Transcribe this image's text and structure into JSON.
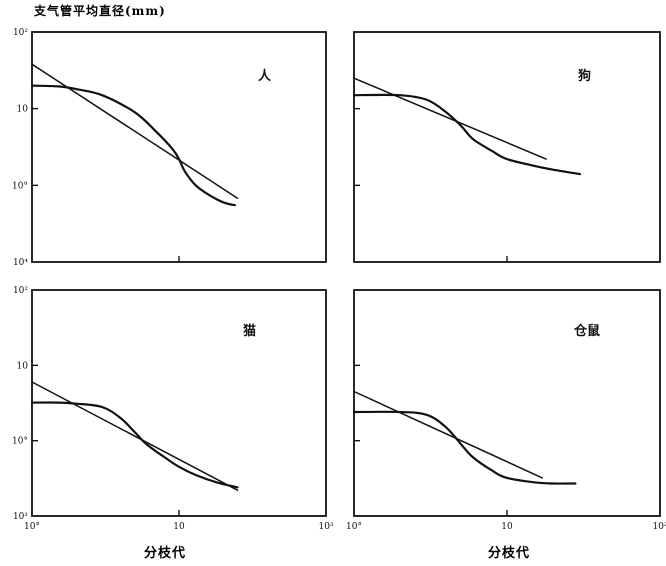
{
  "figure": {
    "ylabel": "支气管平均直径(mm)",
    "xlabel": "分枝代",
    "colors": {
      "ink": "#111111",
      "background": "#ffffff"
    }
  },
  "chart_data": [
    {
      "type": "line",
      "panel_label": "人",
      "xscale": "log",
      "yscale": "log",
      "xlim": [
        1,
        100
      ],
      "ylim": [
        0.1,
        100
      ],
      "xticks": [],
      "yticks": [
        "10²",
        "10",
        "10°",
        "10⁴"
      ],
      "series": [
        {
          "values": [
            [
              1,
              20
            ],
            [
              1.5,
              19.5
            ],
            [
              2,
              18
            ],
            [
              3,
              15
            ],
            [
              5,
              9
            ],
            [
              7,
              5
            ],
            [
              9,
              3
            ],
            [
              10,
              2.2
            ],
            [
              11,
              1.5
            ],
            [
              13,
              1
            ],
            [
              16,
              0.75
            ],
            [
              20,
              0.6
            ],
            [
              24,
              0.55
            ]
          ]
        },
        {
          "values": [
            [
              1,
              38
            ],
            [
              25,
              0.68
            ]
          ]
        }
      ]
    },
    {
      "type": "line",
      "panel_label": "狗",
      "xscale": "log",
      "yscale": "log",
      "xlim": [
        1,
        100
      ],
      "ylim": [
        0.1,
        100
      ],
      "xticks": [],
      "yticks": [],
      "series": [
        {
          "values": [
            [
              1,
              15
            ],
            [
              2,
              15
            ],
            [
              3,
              13
            ],
            [
              4,
              9
            ],
            [
              5,
              6
            ],
            [
              6,
              4
            ],
            [
              8,
              2.8
            ],
            [
              10,
              2.2
            ],
            [
              15,
              1.8
            ],
            [
              20,
              1.6
            ],
            [
              30,
              1.4
            ]
          ]
        },
        {
          "values": [
            [
              1,
              25
            ],
            [
              18,
              2.2
            ]
          ]
        }
      ]
    },
    {
      "type": "line",
      "panel_label": "猫",
      "xscale": "log",
      "yscale": "log",
      "xlim": [
        1,
        100
      ],
      "ylim": [
        0.1,
        100
      ],
      "xticks": [
        "10°",
        "10",
        "10³"
      ],
      "yticks": [
        "10²",
        "10",
        "10°",
        "10¹"
      ],
      "series": [
        {
          "values": [
            [
              1,
              3.2
            ],
            [
              1.5,
              3.2
            ],
            [
              2,
              3.1
            ],
            [
              3,
              2.8
            ],
            [
              4,
              2
            ],
            [
              5,
              1.3
            ],
            [
              6,
              0.9
            ],
            [
              8,
              0.6
            ],
            [
              10,
              0.45
            ],
            [
              13,
              0.35
            ],
            [
              18,
              0.28
            ],
            [
              25,
              0.24
            ]
          ]
        },
        {
          "values": [
            [
              1,
              6
            ],
            [
              25,
              0.22
            ]
          ]
        }
      ]
    },
    {
      "type": "line",
      "panel_label": "仓鼠",
      "xscale": "log",
      "yscale": "log",
      "xlim": [
        1,
        100
      ],
      "ylim": [
        0.1,
        100
      ],
      "xticks": [
        "10°",
        "10",
        "10²"
      ],
      "yticks": [],
      "series": [
        {
          "values": [
            [
              1,
              2.4
            ],
            [
              2,
              2.4
            ],
            [
              3,
              2.2
            ],
            [
              4,
              1.5
            ],
            [
              5,
              0.9
            ],
            [
              6,
              0.6
            ],
            [
              8,
              0.4
            ],
            [
              10,
              0.32
            ],
            [
              15,
              0.28
            ],
            [
              20,
              0.27
            ],
            [
              28,
              0.27
            ]
          ]
        },
        {
          "values": [
            [
              1,
              4.5
            ],
            [
              17,
              0.32
            ]
          ]
        }
      ]
    }
  ]
}
